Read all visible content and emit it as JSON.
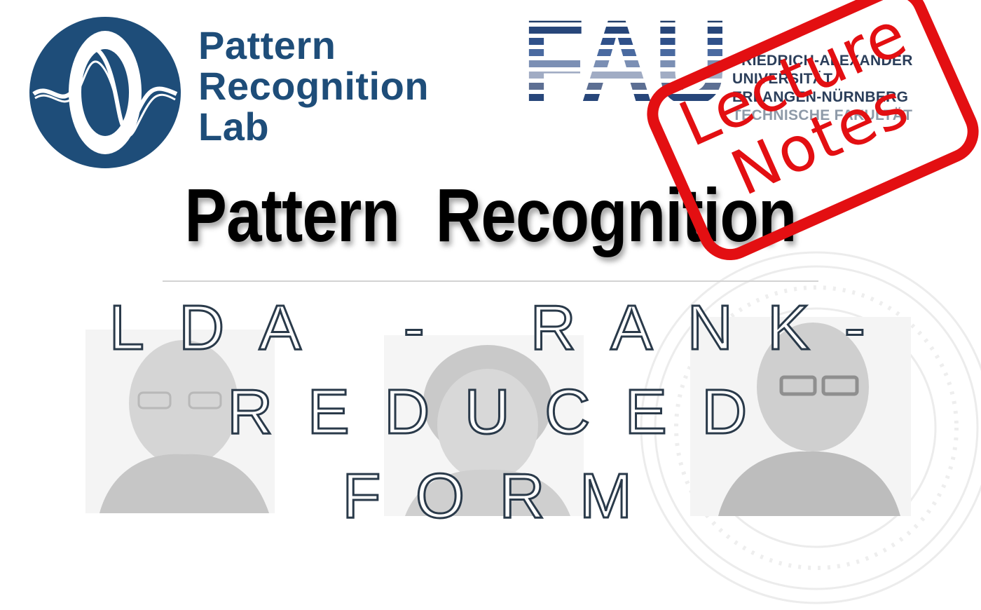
{
  "lab": {
    "name_line1": "Pattern",
    "name_line2": "Recognition",
    "name_line3": "Lab",
    "color": "#1e4d79"
  },
  "university": {
    "logo_letters": "FAU",
    "line1": "FRIEDRICH-ALEXANDER",
    "line2": "UNIVERSITÄT",
    "line3": "ERLANGEN-NÜRNBERG",
    "line4": "TECHNISCHE FAKULTÄT",
    "color": "#2b3e5a"
  },
  "stamp": {
    "line1": "Lecture",
    "line2": "Notes",
    "color": "#e30f12"
  },
  "title": "Pattern Recognition",
  "subtitle": {
    "line1": "LDA - RANK-",
    "line2": "REDUCED",
    "line3": "FORM"
  }
}
